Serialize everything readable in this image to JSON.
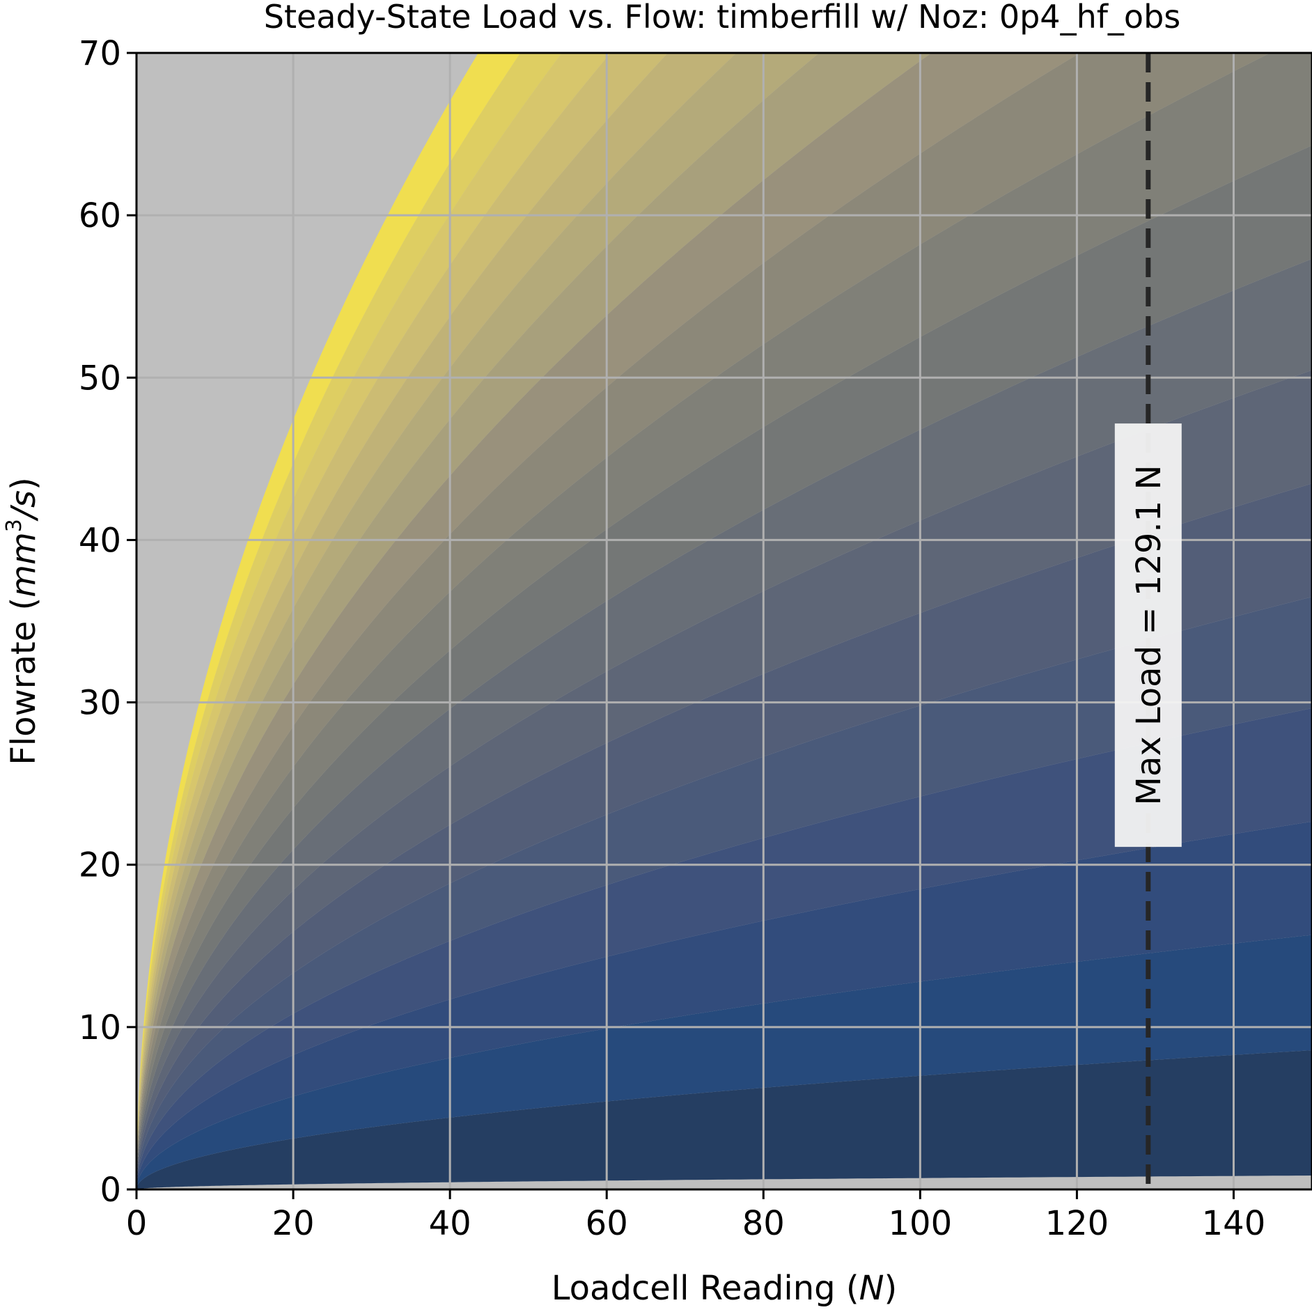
{
  "chart_data": {
    "type": "area",
    "title": "Steady-State Load vs. Flow: timberfill w/ Noz: 0p4_hf_obs",
    "xlabel": "Loadcell Reading (",
    "xlabel_unit": "N",
    "xlabel_close": ")",
    "ylabel": "Flowrate (",
    "ylabel_unit_base": "mm",
    "ylabel_unit_exp": "3",
    "ylabel_unit_tail": "/s",
    "ylabel_close": ")",
    "xlim": [
      0,
      150
    ],
    "ylim": [
      0,
      70
    ],
    "x_ticks": [
      0,
      20,
      40,
      60,
      80,
      100,
      120,
      140
    ],
    "y_ticks": [
      0,
      10,
      20,
      30,
      40,
      50,
      60,
      70
    ],
    "grid": true,
    "background_color": "#bfbfbf",
    "grid_color": "#b0b0b0",
    "bands": {
      "curve_form": "flow = a * load^0.5",
      "boundary_coefficients": [
        0.07,
        0.7,
        1.28,
        1.85,
        2.42,
        2.98,
        3.55,
        4.12,
        4.68,
        5.25,
        5.82,
        6.38,
        6.95,
        7.5,
        8.0,
        8.5,
        9.0,
        9.5,
        10.0,
        10.6
      ],
      "colors": [
        "#253e62",
        "#264a7c",
        "#324c7c",
        "#3f527c",
        "#4a5a7a",
        "#535e78",
        "#5e6677",
        "#686e77",
        "#747776",
        "#808078",
        "#8c8879",
        "#99917c",
        "#a8a07c",
        "#b4aa7a",
        "#c0b277",
        "#ccbc73",
        "#d7c66c",
        "#dece62",
        "#f0de50"
      ]
    },
    "vline": {
      "x": 129.1,
      "color": "#262626",
      "label": "Max Load = 129.1 N",
      "label_y": 41
    }
  }
}
